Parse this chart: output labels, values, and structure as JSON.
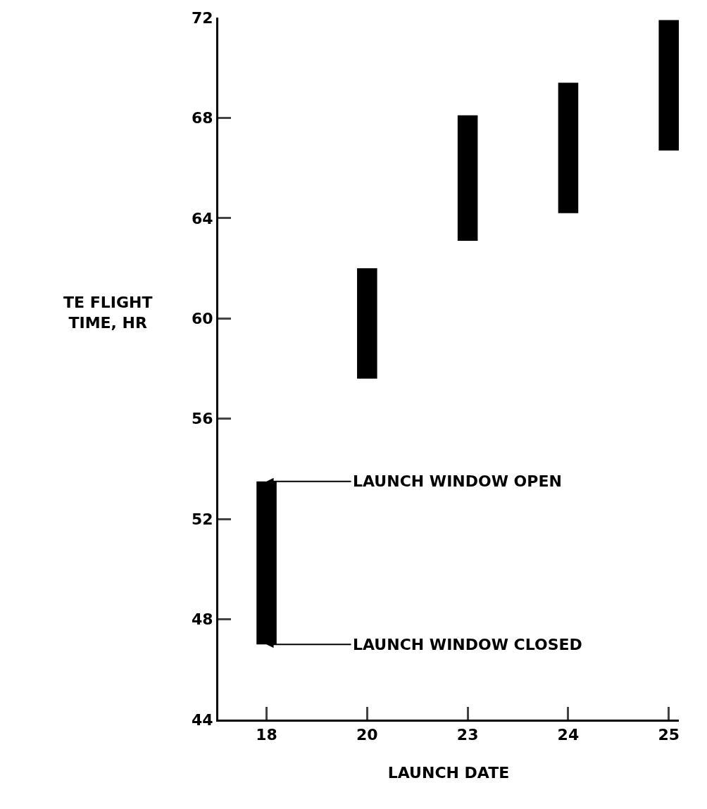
{
  "chart_data": {
    "type": "bar",
    "categories": [
      "18",
      "20",
      "23",
      "24",
      "25"
    ],
    "base": [
      47.0,
      57.6,
      63.1,
      64.2,
      66.7
    ],
    "values": [
      6.5,
      4.4,
      5.0,
      5.2,
      5.2
    ],
    "color": "#000000",
    "ylim": [
      44,
      72
    ],
    "yticks": [
      44,
      48,
      52,
      56,
      60,
      64,
      68,
      72
    ],
    "xlabel": "LAUNCH DATE",
    "ylabel": "TE FLIGHT TIME, HR",
    "annotations": [
      {
        "text": "LAUNCH WINDOW OPEN",
        "x": "18",
        "y": 53.5
      },
      {
        "text": "LAUNCH WINDOW CLOSED",
        "x": "18",
        "y": 47.0
      }
    ],
    "grid": false,
    "legend": false
  }
}
